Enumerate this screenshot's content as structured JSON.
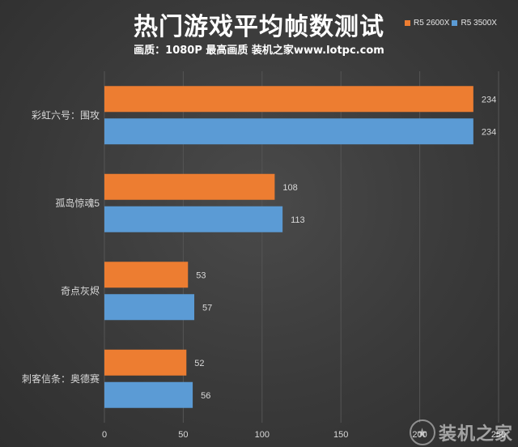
{
  "header": {
    "title": "热门游戏平均帧数测试",
    "subtitle": "画质：1080P 最高画质 装机之家www.lotpc.com"
  },
  "colors": {
    "series1": "#ed7d31",
    "series2": "#5b9bd5",
    "gridline": "#555555",
    "text": "#d9d9d9"
  },
  "watermark": {
    "text": "装机之家",
    "icon": "star-icon"
  },
  "chart_data": {
    "type": "bar",
    "orientation": "horizontal",
    "categories": [
      "彩虹六号：围攻",
      "孤岛惊魂5",
      "奇点灰烬",
      "刺客信条：奥德赛"
    ],
    "series": [
      {
        "name": "R5 2600X",
        "values": [
          234,
          108,
          53,
          52
        ]
      },
      {
        "name": "R5 3500X",
        "values": [
          234,
          113,
          57,
          56
        ]
      }
    ],
    "xlim": [
      0,
      250
    ],
    "xticks": [
      "0",
      "50",
      "100",
      "150",
      "200",
      "250"
    ],
    "grid": true,
    "legend": "top-right",
    "data_labels": true
  }
}
